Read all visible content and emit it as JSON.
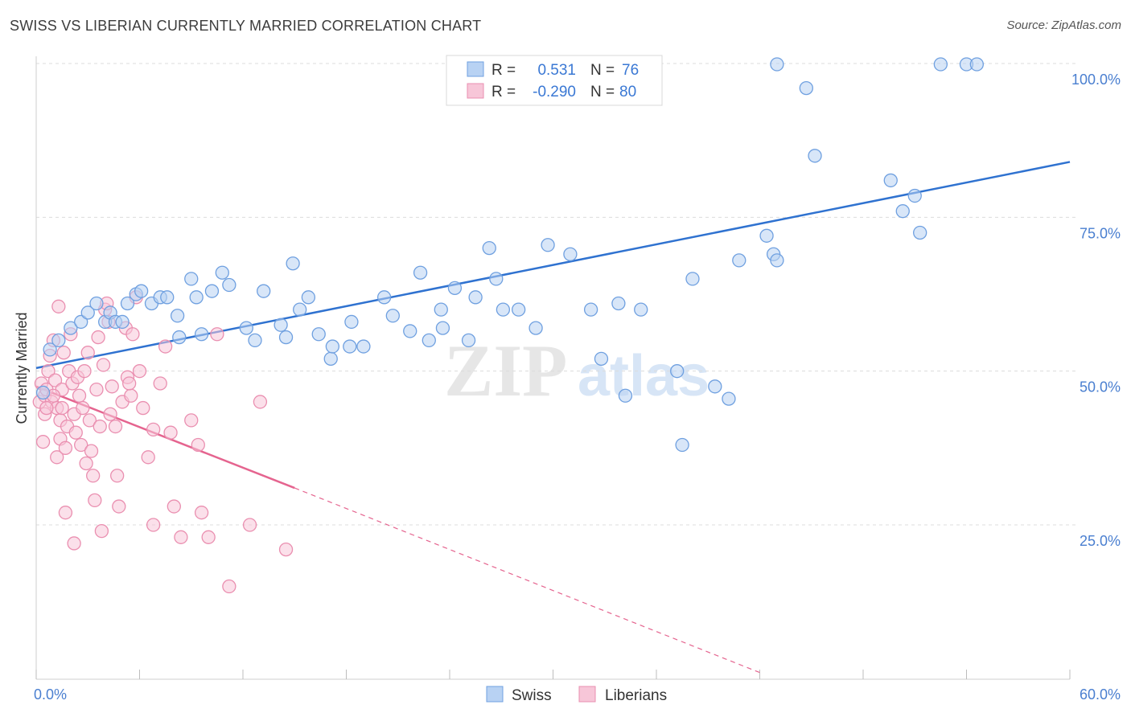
{
  "title": "SWISS VS LIBERIAN CURRENTLY MARRIED CORRELATION CHART",
  "source": "Source: ZipAtlas.com",
  "watermark": {
    "zip": "ZIP",
    "atlas": "atlas"
  },
  "chart_data": {
    "type": "scatter",
    "xlabel": "",
    "ylabel": "Currently Married",
    "xlim": [
      0,
      60
    ],
    "ylim": [
      0,
      105
    ],
    "x_tick_labels": {
      "min": "0.0%",
      "max": "60.0%"
    },
    "y_ticks": [
      {
        "value": 25,
        "label": "25.0%"
      },
      {
        "value": 50,
        "label": "50.0%"
      },
      {
        "value": 75,
        "label": "75.0%"
      },
      {
        "value": 100,
        "label": "100.0%"
      }
    ],
    "legend_stats": [
      {
        "r_label": "R =",
        "r_value": "0.531",
        "n_label": "N =",
        "n_value": "76"
      },
      {
        "r_label": "R =",
        "r_value": "-0.290",
        "n_label": "N =",
        "n_value": "80"
      }
    ],
    "series": [
      {
        "name": "Swiss",
        "color": "#6fa0e0",
        "fill": "#b8d2f3",
        "line_color": "#2f72d0",
        "trend": {
          "x0": 0,
          "y0": 50.5,
          "x1": 60,
          "y1": 84.0
        },
        "points": [
          [
            0.4,
            46.5
          ],
          [
            0.8,
            53.5
          ],
          [
            1.3,
            55
          ],
          [
            2.0,
            57
          ],
          [
            2.6,
            58
          ],
          [
            3.0,
            59.5
          ],
          [
            3.5,
            61
          ],
          [
            4.0,
            58
          ],
          [
            4.3,
            59.5
          ],
          [
            4.6,
            58
          ],
          [
            5.0,
            58
          ],
          [
            5.3,
            61
          ],
          [
            5.8,
            62.5
          ],
          [
            6.1,
            63
          ],
          [
            6.7,
            61
          ],
          [
            7.2,
            62
          ],
          [
            7.6,
            62
          ],
          [
            8.2,
            59
          ],
          [
            8.3,
            55.5
          ],
          [
            9.0,
            65
          ],
          [
            9.3,
            62
          ],
          [
            9.6,
            56
          ],
          [
            10.2,
            63
          ],
          [
            10.8,
            66
          ],
          [
            11.2,
            64
          ],
          [
            12.2,
            57
          ],
          [
            12.7,
            55
          ],
          [
            13.2,
            63
          ],
          [
            14.2,
            57.5
          ],
          [
            14.5,
            55.5
          ],
          [
            14.9,
            67.5
          ],
          [
            15.3,
            60
          ],
          [
            15.8,
            62
          ],
          [
            16.4,
            56
          ],
          [
            17.1,
            52
          ],
          [
            17.2,
            54
          ],
          [
            18.2,
            54
          ],
          [
            18.3,
            58
          ],
          [
            19.0,
            54
          ],
          [
            20.2,
            62
          ],
          [
            20.7,
            59
          ],
          [
            21.7,
            56.5
          ],
          [
            22.3,
            66
          ],
          [
            22.8,
            55
          ],
          [
            23.5,
            60
          ],
          [
            23.6,
            57
          ],
          [
            24.3,
            63.5
          ],
          [
            25.1,
            55
          ],
          [
            25.5,
            62
          ],
          [
            26.3,
            70
          ],
          [
            26.7,
            65
          ],
          [
            27.1,
            60
          ],
          [
            28.0,
            60
          ],
          [
            29.0,
            57
          ],
          [
            29.7,
            70.5
          ],
          [
            31.0,
            69
          ],
          [
            32.2,
            60
          ],
          [
            32.8,
            52
          ],
          [
            33.8,
            61
          ],
          [
            34.2,
            46
          ],
          [
            35.1,
            60
          ],
          [
            37.2,
            50
          ],
          [
            37.5,
            38
          ],
          [
            38.1,
            65
          ],
          [
            39.4,
            47.5
          ],
          [
            40.2,
            45.5
          ],
          [
            40.8,
            68
          ],
          [
            42.4,
            72
          ],
          [
            42.8,
            69
          ],
          [
            43.0,
            68
          ],
          [
            44.7,
            96
          ],
          [
            45.2,
            85
          ],
          [
            49.6,
            81
          ],
          [
            50.3,
            76
          ],
          [
            51.0,
            78.5
          ],
          [
            51.3,
            72.5
          ]
        ],
        "points_top": [
          [
            43.0,
            100
          ],
          [
            52.5,
            100
          ],
          [
            54.0,
            100
          ],
          [
            54.6,
            100
          ]
        ]
      },
      {
        "name": "Liberians",
        "color": "#ea8fb0",
        "fill": "#f7c6d8",
        "line_color": "#e5648f",
        "trend": {
          "x0": 0,
          "y0": 47.5,
          "x1": 15.0,
          "y1": 31.0,
          "dashed_to": {
            "x": 42.0,
            "y": 1.0
          }
        },
        "points": [
          [
            0.2,
            45
          ],
          [
            0.3,
            48
          ],
          [
            0.4,
            38.5
          ],
          [
            0.5,
            46
          ],
          [
            0.5,
            43
          ],
          [
            0.6,
            47
          ],
          [
            0.7,
            50
          ],
          [
            0.8,
            52.5
          ],
          [
            0.9,
            45
          ],
          [
            1.0,
            55
          ],
          [
            1.1,
            48.5
          ],
          [
            1.2,
            44
          ],
          [
            1.2,
            36
          ],
          [
            1.3,
            60.5
          ],
          [
            1.4,
            42
          ],
          [
            1.4,
            39
          ],
          [
            1.5,
            47
          ],
          [
            1.5,
            44
          ],
          [
            1.6,
            53
          ],
          [
            1.7,
            37.5
          ],
          [
            1.8,
            41
          ],
          [
            1.9,
            50
          ],
          [
            2.0,
            56
          ],
          [
            2.1,
            48
          ],
          [
            2.2,
            43
          ],
          [
            2.3,
            40
          ],
          [
            2.4,
            49
          ],
          [
            2.5,
            46
          ],
          [
            2.6,
            38
          ],
          [
            2.7,
            44
          ],
          [
            2.8,
            50
          ],
          [
            3.0,
            53
          ],
          [
            3.1,
            42
          ],
          [
            3.2,
            37
          ],
          [
            3.3,
            33
          ],
          [
            3.4,
            29
          ],
          [
            3.5,
            47
          ],
          [
            3.6,
            55.5
          ],
          [
            3.7,
            41
          ],
          [
            3.9,
            51
          ],
          [
            4.0,
            60
          ],
          [
            4.1,
            61
          ],
          [
            4.2,
            58
          ],
          [
            4.4,
            47.5
          ],
          [
            4.6,
            41
          ],
          [
            4.7,
            33
          ],
          [
            4.8,
            28
          ],
          [
            5.0,
            45
          ],
          [
            5.2,
            57
          ],
          [
            5.3,
            49
          ],
          [
            5.5,
            46
          ],
          [
            5.6,
            56
          ],
          [
            5.8,
            62
          ],
          [
            6.0,
            50
          ],
          [
            6.2,
            44
          ],
          [
            6.5,
            36
          ],
          [
            6.8,
            25
          ],
          [
            7.2,
            48
          ],
          [
            7.5,
            54
          ],
          [
            7.8,
            40
          ],
          [
            8.0,
            28
          ],
          [
            8.4,
            23
          ],
          [
            9.0,
            42
          ],
          [
            9.4,
            38
          ],
          [
            9.6,
            27
          ],
          [
            10.0,
            23
          ],
          [
            10.5,
            56
          ],
          [
            11.2,
            15
          ],
          [
            12.4,
            25
          ],
          [
            13.0,
            45
          ],
          [
            14.5,
            21
          ],
          [
            2.2,
            22
          ],
          [
            3.8,
            24
          ],
          [
            5.4,
            48
          ],
          [
            1.0,
            46
          ],
          [
            0.6,
            44
          ],
          [
            2.9,
            35
          ],
          [
            4.3,
            43
          ],
          [
            6.8,
            40.5
          ],
          [
            1.7,
            27
          ]
        ]
      }
    ]
  }
}
